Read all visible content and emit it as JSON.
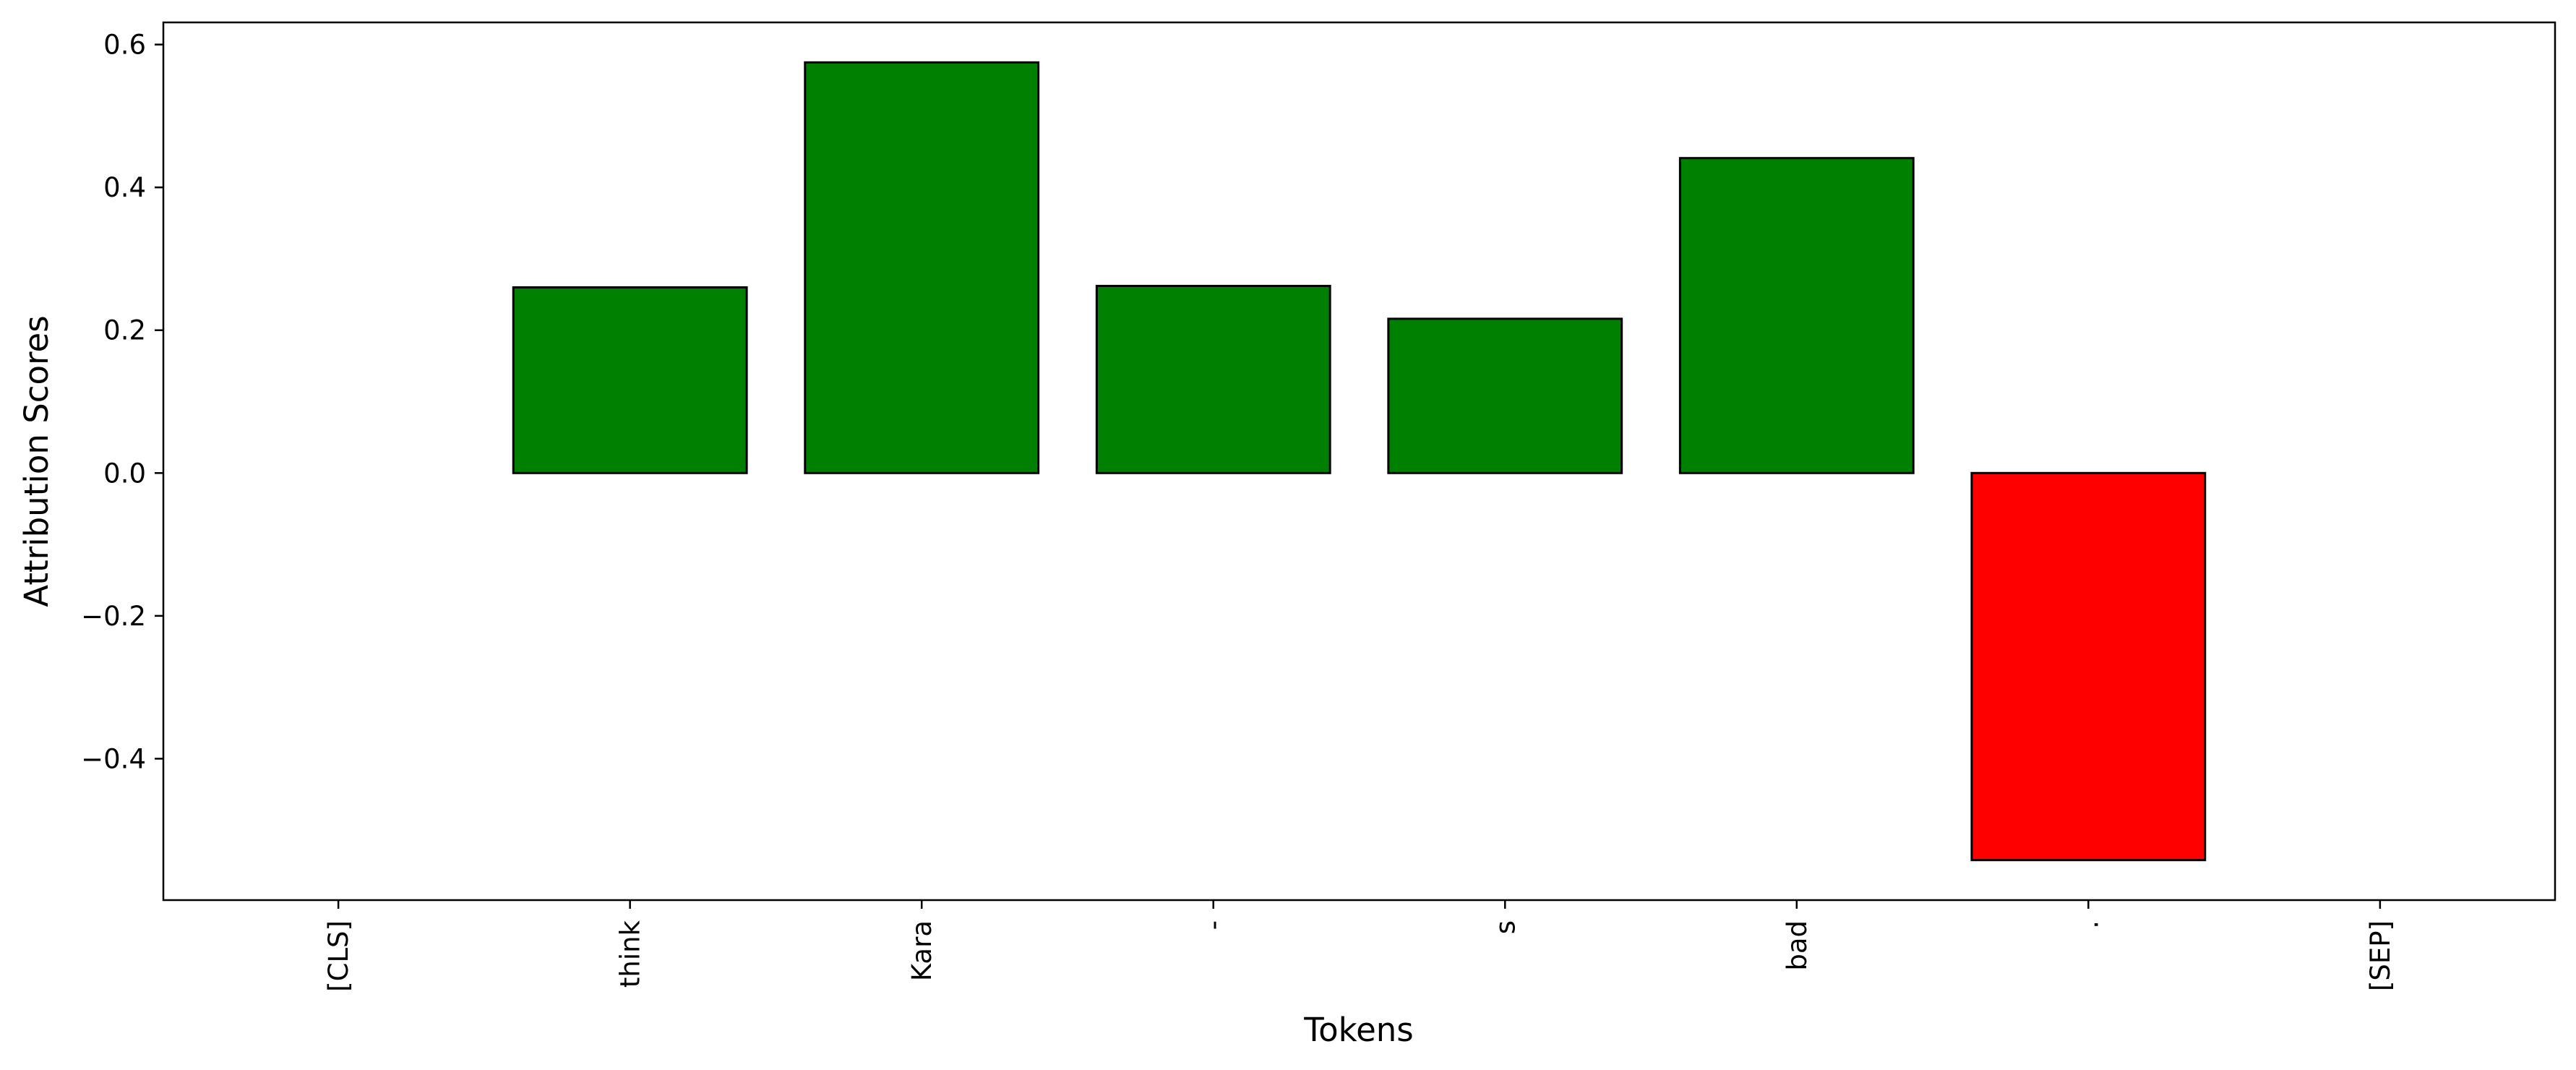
{
  "chart_data": {
    "type": "bar",
    "title": "",
    "xlabel": "Tokens",
    "ylabel": "Attribution Scores",
    "categories": [
      "[CLS]",
      "think",
      "Kara",
      "-",
      "s",
      "bad",
      ".",
      "[SEP]"
    ],
    "values": [
      0.0,
      0.26,
      0.575,
      0.262,
      0.216,
      0.441,
      -0.542,
      0.0
    ],
    "ylim": [
      -0.598,
      0.631
    ],
    "yticks": [
      -0.4,
      -0.2,
      0.0,
      0.2,
      0.4,
      0.6
    ],
    "ytick_labels": [
      "−0.4",
      "−0.2",
      "0.0",
      "0.2",
      "0.4",
      "0.6"
    ],
    "grid": false,
    "positive_color": "#008000",
    "negative_color": "#ff0000",
    "edge_color": "#000000"
  }
}
